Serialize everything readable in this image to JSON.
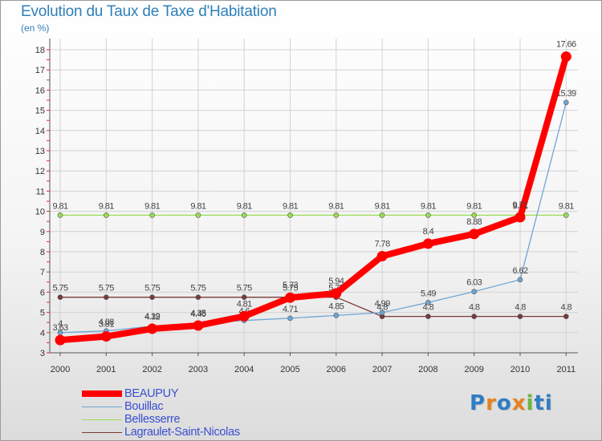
{
  "chart_data": {
    "type": "line",
    "title": "Evolution du Taux de Taxe d'Habitation",
    "subtitle": "(en %)",
    "x": [
      "2000",
      "2001",
      "2002",
      "2003",
      "2004",
      "2005",
      "2006",
      "2007",
      "2008",
      "2009",
      "2010",
      "2011"
    ],
    "yticks": [
      3,
      4,
      5,
      6,
      7,
      8,
      9,
      10,
      11,
      12,
      13,
      14,
      15,
      16,
      17,
      18
    ],
    "ylim": [
      3,
      18.5
    ],
    "series": [
      {
        "name": "BEAUPUY",
        "color": "#ff0000",
        "values": [
          3.63,
          3.81,
          4.19,
          4.35,
          4.81,
          5.73,
          5.94,
          7.78,
          8.4,
          8.88,
          9.71,
          17.66
        ],
        "labels": [
          "3.63",
          "3.81",
          "4.19",
          "4.35",
          "4.81",
          "5.73",
          "5.94",
          "7.78",
          "8.4",
          "8.88",
          "9.71",
          "17.66"
        ]
      },
      {
        "name": "Bouillac",
        "color": "#6ea6d6",
        "values": [
          4,
          4.08,
          4.32,
          4.46,
          4.6,
          4.71,
          4.85,
          4.99,
          5.49,
          6.03,
          6.62,
          15.39
        ],
        "labels": [
          "4",
          "4.08",
          "4.32",
          "4.46",
          "4.6",
          "4.71",
          "4.85",
          "4.99",
          "5.49",
          "6.03",
          "6.62",
          "15.39"
        ]
      },
      {
        "name": "Bellesserre",
        "color": "#99dd55",
        "values": [
          9.81,
          9.81,
          9.81,
          9.81,
          9.81,
          9.81,
          9.81,
          9.81,
          9.81,
          9.81,
          9.81,
          9.81
        ],
        "labels": [
          "9.81",
          "9.81",
          "9.81",
          "9.81",
          "9.81",
          "9.81",
          "9.81",
          "9.81",
          "9.81",
          "9.81",
          "9.81",
          "9.81"
        ]
      },
      {
        "name": "Lagraulet-Saint-Nicolas",
        "color": "#7a3a3a",
        "values": [
          5.75,
          5.75,
          5.75,
          5.75,
          5.75,
          5.75,
          5.75,
          4.8,
          4.8,
          4.8,
          4.8,
          4.8
        ],
        "labels": [
          "5.75",
          "5.75",
          "5.75",
          "5.75",
          "5.75",
          "5.75",
          "5.75",
          "4.8",
          "4.8",
          "4.8",
          "4.8",
          "4.8"
        ]
      }
    ]
  },
  "legend": [
    {
      "label": "BEAUPUY",
      "color": "#ff0000"
    },
    {
      "label": "Bouillac",
      "color": "#6ea6d6"
    },
    {
      "label": "Bellesserre",
      "color": "#99dd55"
    },
    {
      "label": "Lagraulet-Saint-Nicolas",
      "color": "#7a3a3a"
    }
  ],
  "logo": {
    "letters": [
      "P",
      "r",
      "o",
      "x",
      "i",
      "t",
      "i"
    ],
    "colors": [
      "#2f7dc4",
      "#e8821f",
      "#2f7dc4",
      "#e8821f",
      "#6bb83a",
      "#2f7dc4",
      "#2f7dc4"
    ]
  }
}
